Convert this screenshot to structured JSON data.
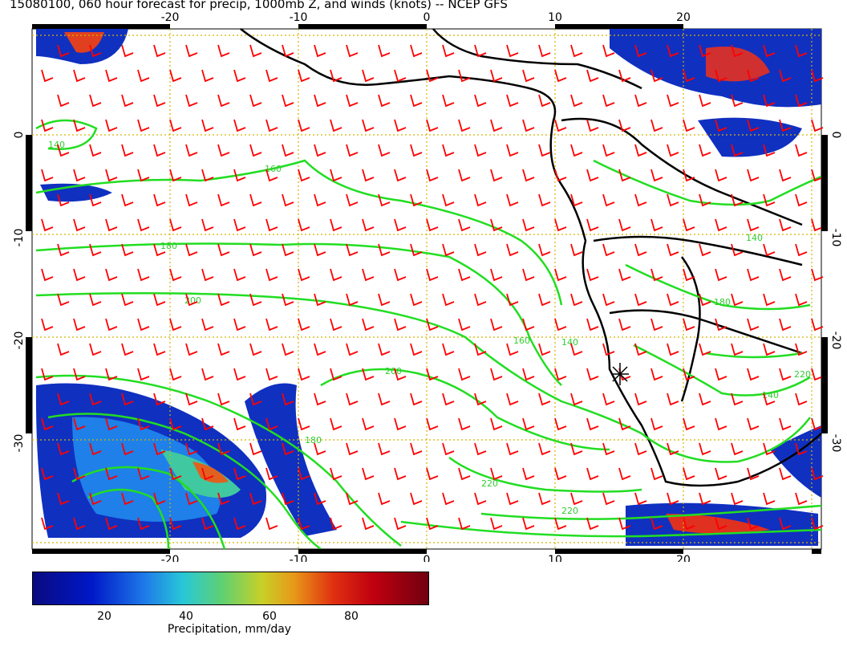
{
  "title": "15080100, 060 hour forecast for precip, 1000mb Z, and winds (knots) -- NCEP GFS",
  "axes": {
    "x_ticks": [
      "-20",
      "-10",
      "0",
      "10",
      "20"
    ],
    "y_ticks": [
      "0",
      "-10",
      "-20",
      "-30"
    ]
  },
  "contour_labels": [
    "140",
    "160",
    "180",
    "200",
    "220",
    "140",
    "160",
    "180",
    "200",
    "220",
    "160",
    "140",
    "200",
    "180"
  ],
  "legend": {
    "title": "Precipitation, mm/day",
    "ticks": [
      "20",
      "40",
      "60",
      "80"
    ]
  },
  "colors": {
    "contour": "#22dd22",
    "wind_barb": "#ff0000",
    "grid": "#d4b400",
    "coast": "#000000"
  }
}
